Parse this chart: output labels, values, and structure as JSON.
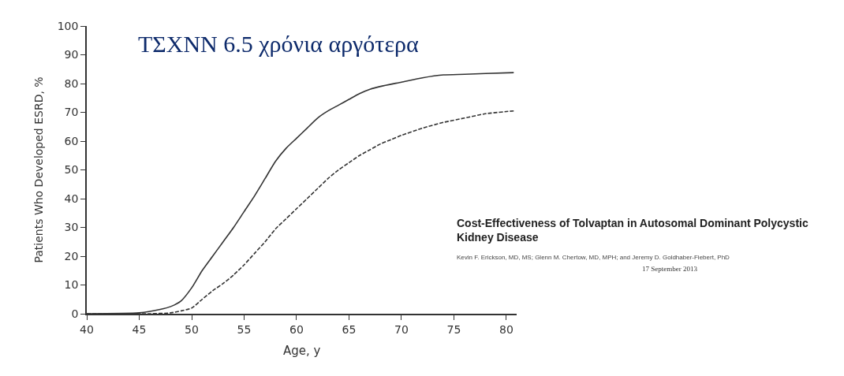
{
  "chart_data": {
    "type": "line",
    "title": "ΤΣΧΝΝ 6.5 χρόνια αργότερα",
    "xlabel": "Age, y",
    "ylabel": "Patients Who Developed ESRD, %",
    "xlim": [
      40,
      81
    ],
    "xticks": [
      40,
      45,
      50,
      55,
      60,
      65,
      70,
      75,
      80
    ],
    "ylim": [
      0,
      100
    ],
    "yticks": [
      0,
      10,
      20,
      30,
      40,
      50,
      60,
      70,
      80,
      90,
      100
    ],
    "marker": "none",
    "series": [
      {
        "color": "#333333",
        "line_style": "solid",
        "x": [
          40,
          45,
          47,
          48,
          49,
          50,
          51,
          52,
          53,
          54,
          55,
          56,
          57,
          58,
          59,
          60,
          61,
          62,
          63,
          64,
          65,
          66,
          67,
          68,
          70,
          72,
          74,
          76,
          78,
          80.7
        ],
        "values": [
          0,
          0.3,
          1.5,
          2.5,
          4.5,
          9,
          15,
          20,
          25,
          30,
          35.5,
          41,
          47,
          53,
          57.5,
          61,
          64.5,
          68,
          70.5,
          72.5,
          74.5,
          76.5,
          78,
          79,
          80.5,
          82,
          83,
          83.2,
          83.5,
          83.8
        ]
      },
      {
        "color": "#333333",
        "line_style": "dashed",
        "x": [
          40,
          46,
          48,
          49,
          50,
          51,
          52,
          53,
          54,
          55,
          56,
          57,
          58,
          59,
          60,
          61,
          62,
          63,
          64,
          65,
          66,
          67,
          68,
          69,
          70,
          72,
          74,
          76,
          78,
          80.7
        ],
        "values": [
          0,
          0,
          0.3,
          1,
          2,
          5,
          8,
          10.5,
          13.5,
          17,
          21,
          25,
          29.5,
          33,
          36.5,
          40,
          43.5,
          47,
          50,
          52.5,
          55,
          57,
          59,
          60.5,
          62,
          64.5,
          66.5,
          68,
          69.5,
          70.5
        ]
      }
    ],
    "annotations": [
      "Cost-Effectiveness of Tolvaptan in Autosomal Dominant Polycystic Kidney Disease",
      "Kevin F. Erickson, MD, MS; Glenn M. Chertow, MD, MPH; and Jeremy D. Goldhaber-Fiebert, PhD",
      "17 September 2013"
    ]
  }
}
